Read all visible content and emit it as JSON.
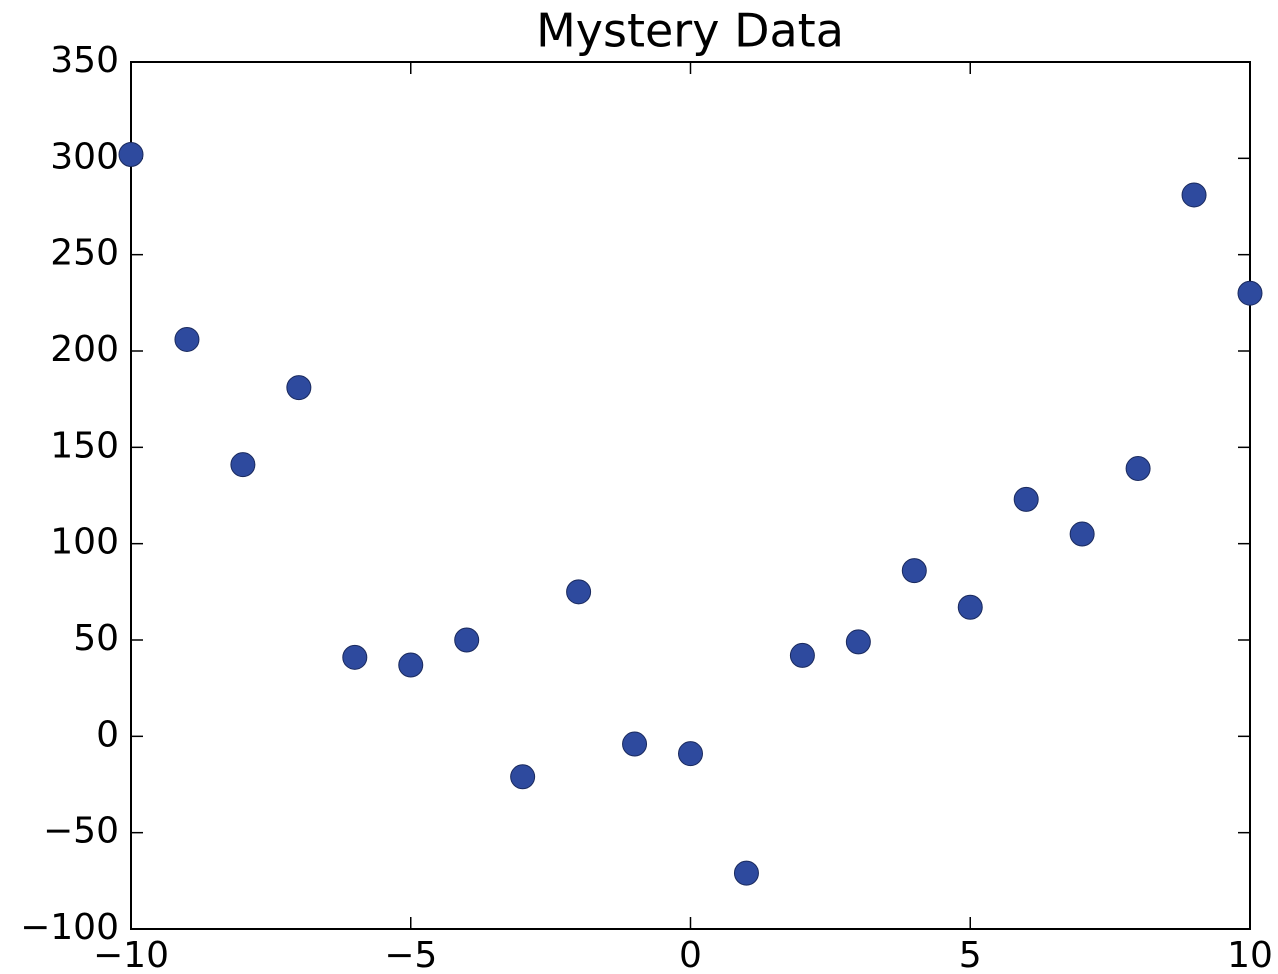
{
  "chart_data": {
    "type": "scatter",
    "title": "Mystery Data",
    "x": [
      -10,
      -9,
      -8,
      -7,
      -6,
      -5,
      -4,
      -3,
      -2,
      -1,
      0,
      1,
      2,
      3,
      4,
      5,
      6,
      7,
      8,
      9,
      10
    ],
    "values": [
      302,
      206,
      141,
      181,
      41,
      37,
      50,
      -21,
      75,
      -4,
      -9,
      -71,
      42,
      49,
      86,
      67,
      123,
      105,
      139,
      281,
      230
    ],
    "color": "#2e4a9e",
    "xlim": [
      -10,
      10
    ],
    "xticks": [
      {
        "value": -10,
        "label": "−10"
      },
      {
        "value": -5,
        "label": "−5"
      },
      0,
      5,
      10
    ],
    "ylim": [
      -100,
      350
    ],
    "yticks": [
      {
        "value": -100,
        "label": "−100"
      },
      {
        "value": -50,
        "label": "−50"
      },
      0,
      50,
      100,
      150,
      200,
      250,
      300,
      350
    ]
  }
}
